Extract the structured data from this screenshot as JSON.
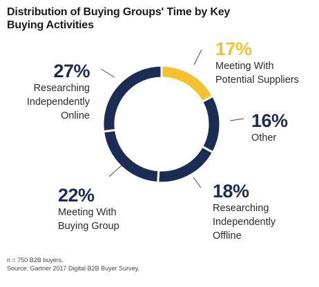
{
  "title": "Distribution of Buying Groups' Time by Key Buying Activities",
  "colors": {
    "primary": "#1c2d55",
    "highlight": "#f2c230",
    "ring_gap": "#ffffff"
  },
  "chart_data": {
    "type": "pie",
    "donut": true,
    "title": "Distribution of Buying Groups' Time by Key Buying Activities",
    "slices": [
      {
        "label": "Meeting With Potential Suppliers",
        "percent_label": "17%",
        "value": 17,
        "color": "#f2c230"
      },
      {
        "label": "Other",
        "percent_label": "16%",
        "value": 16,
        "color": "#1c2d55"
      },
      {
        "label": "Researching Independently Offline",
        "percent_label": "18%",
        "value": 18,
        "color": "#1c2d55"
      },
      {
        "label": "Meeting With Buying Group",
        "percent_label": "22%",
        "value": 22,
        "color": "#1c2d55"
      },
      {
        "label": "Researching Independently Online",
        "percent_label": "27%",
        "value": 27,
        "color": "#1c2d55"
      }
    ]
  },
  "labels": {
    "suppliers": {
      "pct": "17%",
      "line1": "Meeting With",
      "line2": "Potential Suppliers"
    },
    "other": {
      "pct": "16%",
      "line1": "Other"
    },
    "offline": {
      "pct": "18%",
      "line1": "Researching",
      "line2": "Independently",
      "line3": "Offline"
    },
    "group": {
      "pct": "22%",
      "line1": "Meeting With",
      "line2": "Buying Group"
    },
    "online": {
      "pct": "27%",
      "line1": "Researching",
      "line2": "Independently",
      "line3": "Online"
    }
  },
  "footnote": {
    "line1": "n = 750 B2B buyers.",
    "line2": "Source: Gartner 2017 Digital B2B Buyer Survey."
  }
}
